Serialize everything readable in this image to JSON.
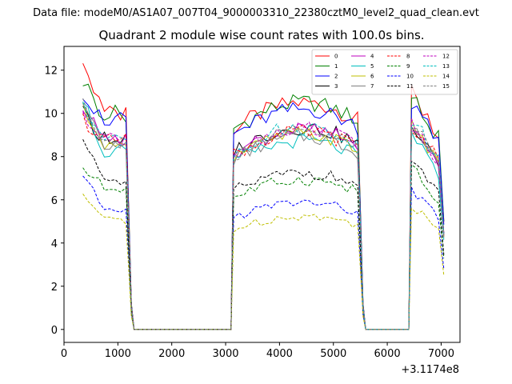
{
  "chart_data": {
    "type": "line",
    "suptitle": "Data file: modeM0/AS1A07_007T04_9000003310_22380cztM0_level2_quad_clean.evt",
    "title": "Quadrant 2 module wise count rates with 100.0s bins.",
    "xlabel": "",
    "ylabel": "",
    "x_offset_label": "+3.1174e8",
    "xlim": [
      0,
      7350
    ],
    "ylim": [
      -0.6,
      13.1
    ],
    "xticks": [
      0,
      1000,
      2000,
      3000,
      4000,
      5000,
      6000,
      7000
    ],
    "yticks": [
      0,
      2,
      4,
      6,
      8,
      10,
      12
    ],
    "legend_position": "top-right",
    "segments": [
      {
        "start": 350,
        "end": 1150
      },
      {
        "start": 3150,
        "end": 5450
      },
      {
        "start": 6450,
        "end": 7050
      }
    ],
    "series": [
      {
        "name": "0",
        "color": "#ff0000",
        "dash": "solid",
        "level": 10.0,
        "first": 12.5
      },
      {
        "name": "1",
        "color": "#008000",
        "dash": "solid",
        "level": 10.0,
        "first": 11.5
      },
      {
        "name": "2",
        "color": "#0000ff",
        "dash": "solid",
        "level": 9.7,
        "first": 11.0
      },
      {
        "name": "3",
        "color": "#000000",
        "dash": "solid",
        "level": 8.9,
        "first": 10.0
      },
      {
        "name": "4",
        "color": "#bf00bf",
        "dash": "solid",
        "level": 8.8,
        "first": 10.4
      },
      {
        "name": "5",
        "color": "#00bfbf",
        "dash": "solid",
        "level": 8.3,
        "first": 10.6
      },
      {
        "name": "6",
        "color": "#bfbf00",
        "dash": "solid",
        "level": 8.6,
        "first": 10.2
      },
      {
        "name": "7",
        "color": "#808080",
        "dash": "solid",
        "level": 8.5,
        "first": 10.3
      },
      {
        "name": "8",
        "color": "#ff0000",
        "dash": "dashed",
        "level": 8.7,
        "first": 9.8
      },
      {
        "name": "9",
        "color": "#008000",
        "dash": "dashed",
        "level": 6.6,
        "first": 7.5
      },
      {
        "name": "10",
        "color": "#0000ff",
        "dash": "dashed",
        "level": 5.6,
        "first": 7.2
      },
      {
        "name": "11",
        "color": "#000000",
        "dash": "dashed",
        "level": 6.9,
        "first": 8.8
      },
      {
        "name": "12",
        "color": "#bf00bf",
        "dash": "dashed",
        "level": 8.9,
        "first": 10.0
      },
      {
        "name": "13",
        "color": "#00bfbf",
        "dash": "dashed",
        "level": 8.9,
        "first": 10.2
      },
      {
        "name": "14",
        "color": "#bfbf00",
        "dash": "dashed",
        "level": 5.0,
        "first": 6.2
      },
      {
        "name": "15",
        "color": "#808080",
        "dash": "dashed",
        "level": 8.7,
        "first": 10.5
      }
    ]
  }
}
